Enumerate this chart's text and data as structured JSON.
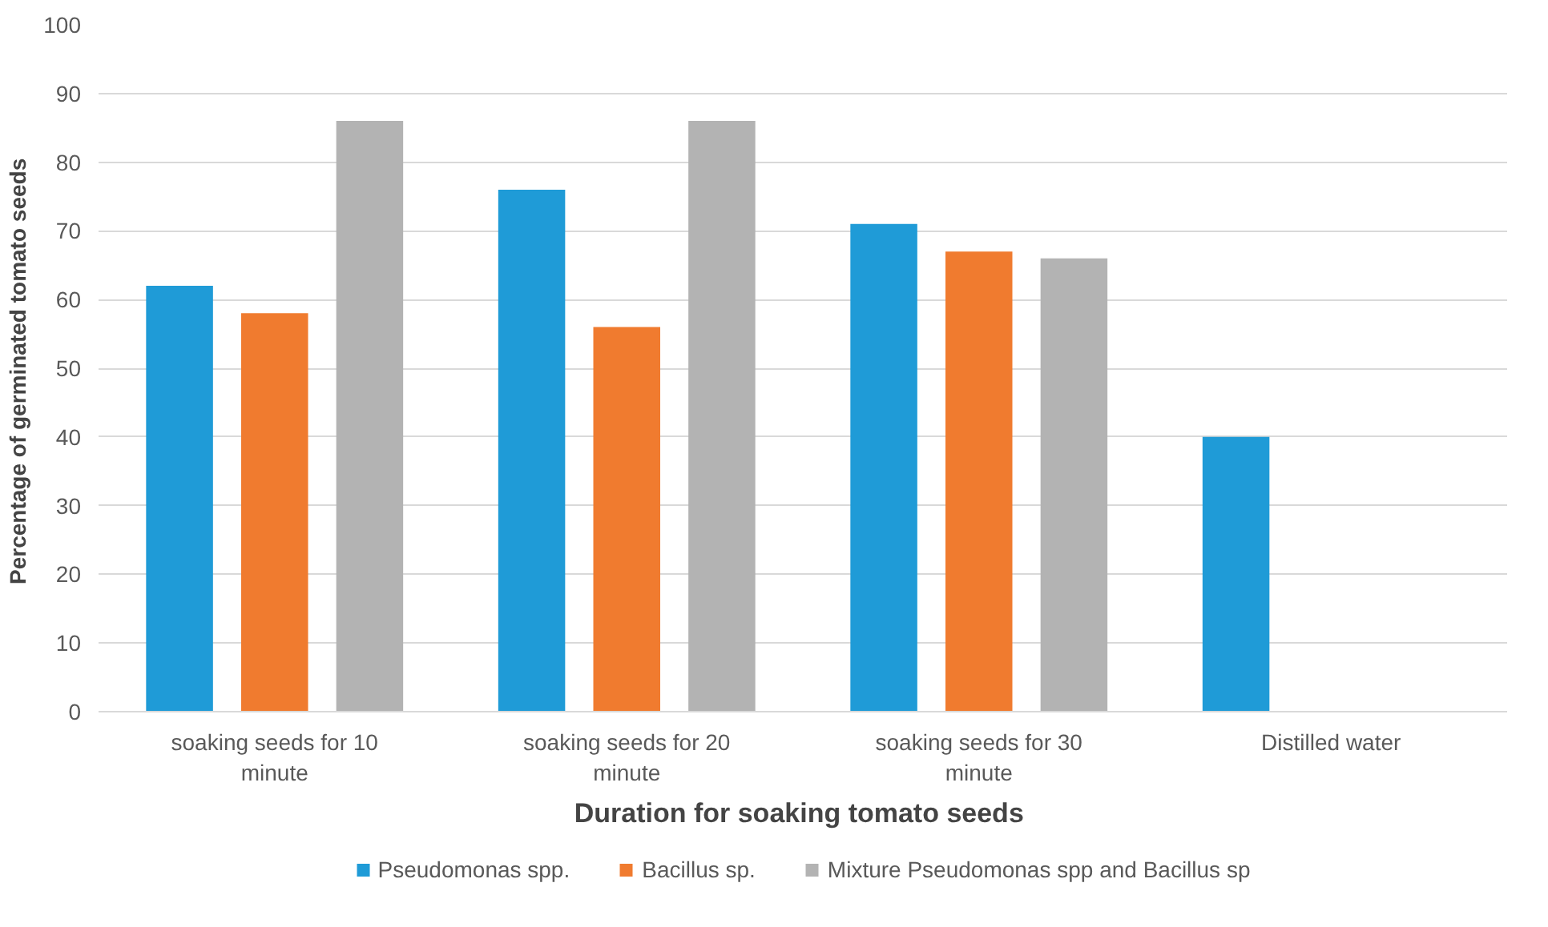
{
  "chart_data": {
    "type": "bar",
    "categories": [
      "soaking seeds for 10 minute",
      "soaking seeds for 20 minute",
      "soaking seeds for 30 minute",
      "Distilled water"
    ],
    "series": [
      {
        "name": "Pseudomonas spp.",
        "color": "#1f9bd7",
        "values": [
          62,
          76,
          71,
          40
        ]
      },
      {
        "name": "Bacillus sp.",
        "color": "#f07b2f",
        "values": [
          58,
          56,
          67,
          null
        ]
      },
      {
        "name": "Mixture Pseudomonas spp and Bacillus sp",
        "color": "#b3b3b3",
        "values": [
          86,
          86,
          66,
          null
        ]
      }
    ],
    "xlabel": "Duration  for soaking tomato seeds",
    "ylabel": "Percentage of germinated  tomato seeds",
    "ylim": [
      0,
      100
    ],
    "yticks": [
      0,
      10,
      20,
      30,
      40,
      50,
      60,
      70,
      80,
      90,
      100
    ],
    "grid": "y",
    "legend": "bottom"
  }
}
